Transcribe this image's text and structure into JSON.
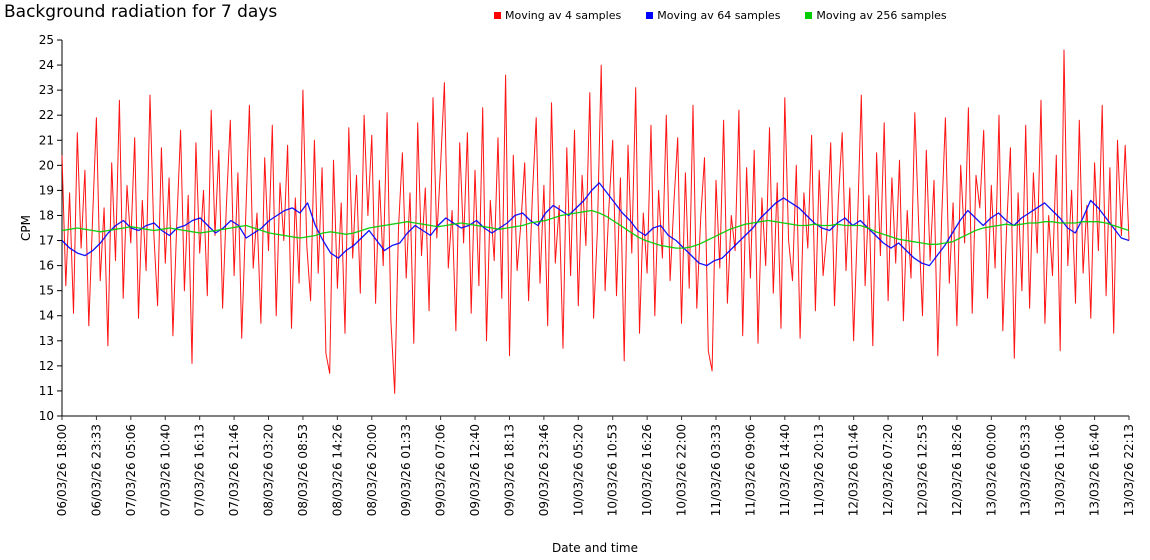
{
  "title": "Background radiation for 7 days",
  "legend": [
    {
      "label": "Moving av 4 samples",
      "color": "#ff0000"
    },
    {
      "label": "Moving av 64 samples",
      "color": "#0000ff"
    },
    {
      "label": "Moving av 256 samples",
      "color": "#00cc00"
    }
  ],
  "chart_data": {
    "type": "line",
    "title": "Background radiation for 7 days",
    "xlabel": "Date and time",
    "ylabel": "CPM",
    "ylim": [
      10,
      25
    ],
    "grid": false,
    "legend_position": "top",
    "y_ticks": [
      10,
      11,
      12,
      13,
      14,
      15,
      16,
      17,
      18,
      19,
      20,
      21,
      22,
      23,
      24,
      25
    ],
    "x_tick_labels": [
      "06/03/26 18:00",
      "06/03/26 23:33",
      "07/03/26 05:06",
      "07/03/26 10:40",
      "07/03/26 16:13",
      "07/03/26 21:46",
      "08/03/26 03:20",
      "08/03/26 08:53",
      "08/03/26 14:26",
      "08/03/26 20:00",
      "09/03/26 01:33",
      "09/03/26 07:06",
      "09/03/26 12:40",
      "09/03/26 18:13",
      "09/03/26 23:46",
      "10/03/26 05:20",
      "10/03/26 10:53",
      "10/03/26 16:26",
      "10/03/26 22:00",
      "11/03/26 03:33",
      "11/03/26 09:06",
      "11/03/26 14:40",
      "11/03/26 20:13",
      "12/03/26 01:46",
      "12/03/26 07:20",
      "12/03/26 12:53",
      "12/03/26 18:26",
      "13/03/26 00:00",
      "13/03/26 05:33",
      "13/03/26 11:06",
      "13/03/26 16:40",
      "13/03/26 22:13"
    ],
    "series": [
      {
        "name": "Moving av 4 samples",
        "color": "#ff0000",
        "values": [
          20.4,
          15.2,
          18.9,
          14.1,
          21.3,
          16.7,
          19.8,
          13.6,
          17.9,
          21.9,
          15.4,
          18.3,
          12.8,
          20.1,
          16.2,
          22.6,
          14.7,
          19.2,
          16.9,
          21.1,
          13.9,
          18.6,
          15.8,
          22.8,
          17.3,
          14.4,
          20.7,
          16.1,
          19.5,
          13.2,
          17.6,
          21.4,
          15.0,
          18.8,
          12.1,
          20.9,
          16.5,
          19.0,
          14.8,
          22.2,
          17.2,
          20.6,
          14.3,
          18.4,
          21.8,
          15.6,
          19.7,
          13.1,
          17.8,
          22.4,
          15.9,
          18.1,
          13.7,
          20.3,
          16.6,
          21.6,
          14.0,
          19.3,
          17.0,
          20.8,
          13.5,
          18.7,
          15.3,
          23.0,
          16.8,
          14.6,
          21.0,
          15.7,
          19.9,
          12.5,
          11.7,
          20.2,
          15.1,
          18.5,
          13.3,
          21.5,
          16.3,
          19.6,
          14.9,
          22.0,
          18.0,
          21.2,
          14.5,
          19.4,
          16.0,
          22.1,
          13.8,
          10.9,
          17.5,
          20.5,
          15.5,
          18.9,
          12.9,
          21.7,
          16.4,
          19.1,
          14.2,
          22.7,
          17.1,
          20.0,
          23.3,
          15.9,
          18.2,
          13.4,
          20.9,
          16.9,
          21.3,
          14.1,
          19.8,
          15.2,
          22.3,
          13.0,
          18.6,
          16.2,
          21.1,
          14.7,
          23.6,
          12.4,
          20.4,
          15.8,
          17.7,
          20.1,
          14.6,
          18.8,
          21.9,
          15.3,
          19.2,
          13.6,
          22.5,
          16.1,
          18.4,
          12.7,
          20.7,
          15.6,
          21.4,
          14.4,
          19.6,
          16.8,
          22.9,
          13.9,
          17.4,
          24.0,
          15.0,
          18.3,
          21.0,
          14.8,
          19.5,
          12.2,
          20.8,
          16.5,
          23.1,
          13.3,
          18.1,
          15.7,
          21.6,
          14.0,
          19.0,
          16.3,
          22.0,
          15.4,
          18.5,
          21.1,
          13.7,
          19.7,
          15.1,
          22.4,
          14.3,
          17.9,
          20.3,
          12.6,
          11.8,
          19.4,
          15.9,
          21.8,
          14.5,
          18.0,
          16.6,
          22.2,
          13.2,
          19.9,
          15.5,
          20.6,
          12.9,
          18.7,
          16.0,
          21.5,
          14.9,
          19.3,
          13.5,
          22.7,
          17.0,
          15.4,
          20.0,
          13.1,
          18.9,
          16.7,
          21.2,
          14.2,
          19.8,
          15.6,
          17.3,
          20.9,
          14.4,
          18.6,
          21.3,
          15.8,
          19.1,
          13.0,
          17.7,
          22.8,
          15.2,
          18.8,
          12.8,
          20.5,
          16.4,
          21.7,
          14.6,
          19.5,
          16.1,
          20.2,
          13.8,
          18.2,
          15.5,
          22.1,
          17.6,
          14.0,
          20.6,
          16.2,
          19.4,
          12.4,
          17.8,
          21.9,
          15.3,
          18.5,
          13.6,
          20.0,
          16.9,
          22.3,
          14.1,
          19.6,
          18.3,
          21.4,
          14.7,
          19.2,
          15.9,
          22.0,
          13.4,
          17.5,
          20.7,
          12.3,
          18.9,
          15.0,
          21.6,
          14.3,
          19.7,
          16.5,
          22.6,
          13.7,
          18.0,
          15.6,
          20.4,
          12.6,
          24.6,
          16.0,
          19.0,
          14.5,
          21.8,
          15.7,
          18.4,
          13.9,
          20.1,
          16.6,
          22.4,
          14.8,
          19.9,
          13.3,
          21.0,
          17.2,
          20.8,
          17.0
        ]
      },
      {
        "name": "Moving av 64 samples",
        "color": "#0000ff",
        "values": [
          17.0,
          16.7,
          16.5,
          16.4,
          16.6,
          16.9,
          17.3,
          17.6,
          17.8,
          17.5,
          17.4,
          17.6,
          17.7,
          17.4,
          17.2,
          17.5,
          17.6,
          17.8,
          17.9,
          17.6,
          17.3,
          17.5,
          17.8,
          17.6,
          17.1,
          17.3,
          17.5,
          17.8,
          18.0,
          18.2,
          18.3,
          18.1,
          18.5,
          17.6,
          17.0,
          16.5,
          16.3,
          16.6,
          16.8,
          17.1,
          17.4,
          17.0,
          16.6,
          16.8,
          16.9,
          17.3,
          17.6,
          17.4,
          17.2,
          17.6,
          17.9,
          17.7,
          17.5,
          17.6,
          17.8,
          17.5,
          17.3,
          17.5,
          17.7,
          18.0,
          18.1,
          17.8,
          17.6,
          18.1,
          18.4,
          18.2,
          18.0,
          18.3,
          18.6,
          19.0,
          19.3,
          18.9,
          18.5,
          18.1,
          17.8,
          17.4,
          17.2,
          17.5,
          17.6,
          17.2,
          17.0,
          16.7,
          16.4,
          16.1,
          16.0,
          16.2,
          16.3,
          16.6,
          16.9,
          17.2,
          17.5,
          17.9,
          18.2,
          18.5,
          18.7,
          18.5,
          18.3,
          18.0,
          17.7,
          17.5,
          17.4,
          17.7,
          17.9,
          17.6,
          17.8,
          17.5,
          17.2,
          16.9,
          16.7,
          16.9,
          16.6,
          16.3,
          16.1,
          16.0,
          16.4,
          16.8,
          17.3,
          17.8,
          18.2,
          17.9,
          17.6,
          17.9,
          18.1,
          17.8,
          17.6,
          17.9,
          18.1,
          18.3,
          18.5,
          18.2,
          17.9,
          17.5,
          17.3,
          17.9,
          18.6,
          18.3,
          17.9,
          17.5,
          17.1,
          17.0
        ]
      },
      {
        "name": "Moving av 256 samples",
        "color": "#00cc00",
        "values": [
          17.4,
          17.45,
          17.5,
          17.45,
          17.4,
          17.35,
          17.4,
          17.45,
          17.5,
          17.55,
          17.5,
          17.45,
          17.4,
          17.45,
          17.5,
          17.45,
          17.4,
          17.35,
          17.3,
          17.35,
          17.4,
          17.45,
          17.5,
          17.55,
          17.6,
          17.5,
          17.4,
          17.3,
          17.25,
          17.2,
          17.15,
          17.1,
          17.15,
          17.2,
          17.3,
          17.35,
          17.3,
          17.25,
          17.3,
          17.4,
          17.5,
          17.55,
          17.6,
          17.65,
          17.7,
          17.75,
          17.7,
          17.65,
          17.6,
          17.55,
          17.6,
          17.65,
          17.7,
          17.65,
          17.6,
          17.55,
          17.5,
          17.45,
          17.5,
          17.55,
          17.6,
          17.7,
          17.75,
          17.8,
          17.9,
          18.0,
          18.05,
          18.1,
          18.15,
          18.2,
          18.1,
          17.95,
          17.75,
          17.55,
          17.35,
          17.15,
          17.0,
          16.9,
          16.8,
          16.75,
          16.7,
          16.7,
          16.75,
          16.85,
          17.0,
          17.15,
          17.3,
          17.45,
          17.55,
          17.65,
          17.7,
          17.75,
          17.8,
          17.75,
          17.7,
          17.65,
          17.6,
          17.6,
          17.65,
          17.6,
          17.6,
          17.65,
          17.6,
          17.6,
          17.6,
          17.5,
          17.35,
          17.25,
          17.15,
          17.05,
          17.0,
          16.95,
          16.9,
          16.85,
          16.85,
          16.9,
          16.95,
          17.1,
          17.25,
          17.4,
          17.5,
          17.55,
          17.6,
          17.65,
          17.6,
          17.65,
          17.7,
          17.7,
          17.75,
          17.75,
          17.7,
          17.7,
          17.7,
          17.75,
          17.75,
          17.75,
          17.7,
          17.6,
          17.5,
          17.4
        ]
      }
    ]
  }
}
